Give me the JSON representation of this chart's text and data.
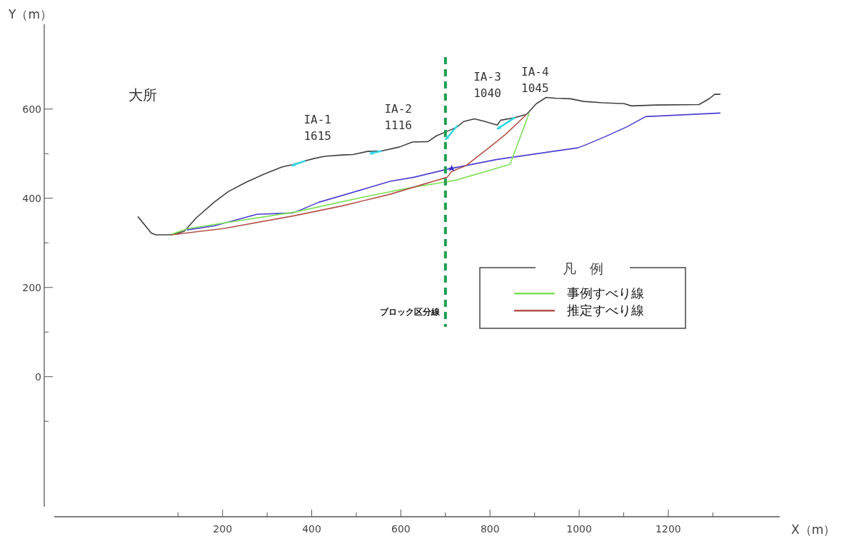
{
  "chart_data": {
    "type": "line",
    "xlabel": "X（m）",
    "ylabel": "Y（m）",
    "legend_title": "凡　例",
    "legend": "right",
    "grid": false,
    "line_style": "solid",
    "xlim": [
      -200,
      1450
    ],
    "ylim": [
      -314,
      790
    ],
    "xticks": [
      {
        "value": 100,
        "label": null
      },
      200,
      {
        "value": 300,
        "label": null
      },
      400,
      {
        "value": 500,
        "label": null
      },
      600,
      {
        "value": 700,
        "label": null
      },
      800,
      {
        "value": 900,
        "label": null
      },
      1000,
      {
        "value": 1100,
        "label": null
      },
      1200,
      {
        "value": 1300,
        "label": null
      }
    ],
    "yticks": [
      {
        "value": -100,
        "label": null
      },
      0,
      {
        "value": 100,
        "label": null
      },
      200,
      {
        "value": 300,
        "label": null
      },
      400,
      {
        "value": 500,
        "label": null
      },
      600
    ],
    "series": [
      {
        "color": "#404040",
        "x": [
          10,
          40,
          50,
          85,
          114,
          141,
          181,
          213,
          253,
          293,
          333,
          360,
          386,
          405,
          429,
          469,
          493,
          525,
          557,
          597,
          626,
          661,
          680,
          706,
          725,
          741,
          765,
          789,
          816,
          824,
          853,
          882,
          904,
          926,
          949,
          981,
          1010,
          1053,
          1101,
          1117,
          1173,
          1269,
          1293,
          1304,
          1317
        ],
        "values": [
          359,
          322,
          318,
          318,
          326,
          356,
          391,
          415,
          436,
          454,
          470,
          476,
          484,
          489,
          494,
          497,
          498,
          505,
          506,
          515,
          526,
          527,
          540,
          551,
          559,
          572,
          578,
          572,
          564,
          575,
          580,
          588,
          612,
          626,
          624,
          623,
          617,
          614,
          612,
          607,
          609,
          610,
          624,
          633,
          633
        ]
      },
      {
        "color": "#4a3fd0",
        "x": [
          120,
          181,
          277,
          357,
          378,
          416,
          522,
          576,
          629,
          704,
          816,
          997,
          1013,
          1056,
          1109,
          1149,
          1317
        ],
        "values": [
          329,
          338,
          364,
          367,
          375,
          391,
          422,
          438,
          447,
          465,
          487,
          513,
          519,
          537,
          561,
          583,
          591
        ]
      },
      {
        "name": "事例すべり線",
        "color": "#7fe05a",
        "x": [
          85,
          122,
          362,
          522,
          629,
          698,
          725,
          845,
          888
        ],
        "values": [
          319,
          332,
          369,
          404,
          425,
          436,
          441,
          476,
          591
        ]
      },
      {
        "name": "推定すべり線",
        "color": "#b5524a",
        "x": [
          85,
          202,
          362,
          469,
          576,
          656,
          704,
          714,
          746,
          805,
          837,
          882
        ],
        "values": [
          318,
          332,
          361,
          383,
          409,
          433,
          447,
          460,
          473,
          519,
          545,
          588
        ]
      }
    ],
    "ref_lines": [
      {
        "axis": "x",
        "value": 700,
        "label": "ブロック区分線",
        "color": "#1e9e50",
        "line_style": "dashed"
      }
    ],
    "annotations": [
      "大所",
      {
        "text": "IA-1\n1615",
        "x": 389,
        "y": 485
      },
      {
        "text": "IA-2\n1116",
        "x": 570,
        "y": 508
      },
      {
        "text": "IA-3\n1040",
        "x": 770,
        "y": 580
      },
      {
        "text": "IA-4\n1045",
        "x": 877,
        "y": 591
      }
    ]
  }
}
